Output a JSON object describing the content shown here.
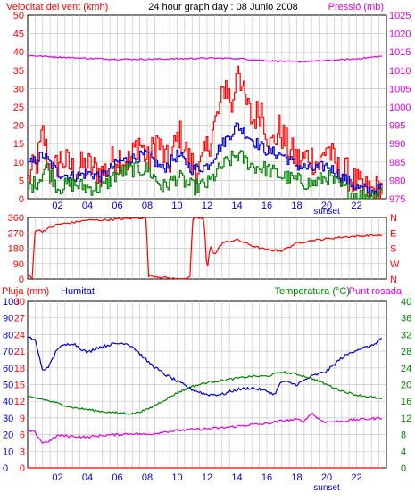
{
  "colors": {
    "red": "#ff0000",
    "blue": "#0000cc",
    "green": "#008000",
    "magenta": "#e000e0",
    "black": "#000000"
  },
  "chart_data": [
    {
      "type": "line",
      "title": "24 hour graph day : 08 Junio 2008",
      "left_label": "Velocitat del vent (kmh)",
      "right_label": "Pressió (mb)",
      "x_ticks": [
        "02",
        "04",
        "06",
        "08",
        "10",
        "12",
        "14",
        "16",
        "18",
        "20",
        "22"
      ],
      "x_extra_label": "sunset",
      "y_left_ticks": [
        "0",
        "5",
        "10",
        "15",
        "20",
        "25",
        "30",
        "35",
        "40",
        "45",
        "50"
      ],
      "y_right_ticks": [
        "975",
        "980",
        "985",
        "990",
        "995",
        "1000",
        "1005",
        "1010",
        "1015",
        "1020",
        "1025"
      ],
      "xlim": [
        0,
        24
      ],
      "ylim_left": [
        0,
        50
      ],
      "ylim_right": [
        975,
        1025
      ],
      "series": [
        {
          "color": "red",
          "axis": "left",
          "smooth": 0,
          "points": [
            [
              0,
              5
            ],
            [
              0.6,
              10
            ],
            [
              1.0,
              18
            ],
            [
              1.5,
              6
            ],
            [
              2.2,
              11
            ],
            [
              3.0,
              8
            ],
            [
              4.0,
              9
            ],
            [
              5.0,
              7
            ],
            [
              6.0,
              12
            ],
            [
              6.8,
              10
            ],
            [
              7.4,
              16
            ],
            [
              8.0,
              10
            ],
            [
              8.6,
              16
            ],
            [
              9.4,
              9
            ],
            [
              10.1,
              18
            ],
            [
              10.8,
              10
            ],
            [
              11.5,
              8
            ],
            [
              12.3,
              18
            ],
            [
              12.8,
              24
            ],
            [
              13.2,
              32
            ],
            [
              13.7,
              24
            ],
            [
              14.0,
              39
            ],
            [
              14.4,
              28
            ],
            [
              15.0,
              21
            ],
            [
              15.6,
              25
            ],
            [
              16.2,
              14
            ],
            [
              16.8,
              19
            ],
            [
              17.5,
              13
            ],
            [
              18.2,
              10
            ],
            [
              18.8,
              12
            ],
            [
              19.5,
              9
            ],
            [
              20.0,
              15
            ],
            [
              20.6,
              8
            ],
            [
              21.3,
              7
            ],
            [
              22.2,
              3
            ],
            [
              23.0,
              2
            ],
            [
              23.7,
              3
            ]
          ]
        },
        {
          "color": "blue",
          "axis": "left",
          "smooth": 0.25,
          "points": [
            [
              0,
              9
            ],
            [
              1,
              12
            ],
            [
              2,
              7
            ],
            [
              3,
              6
            ],
            [
              4,
              7
            ],
            [
              5,
              6
            ],
            [
              6,
              10
            ],
            [
              7,
              11
            ],
            [
              8,
              12
            ],
            [
              9,
              8
            ],
            [
              10,
              12
            ],
            [
              11,
              8
            ],
            [
              12,
              9
            ],
            [
              13,
              15
            ],
            [
              14,
              20
            ],
            [
              15,
              16
            ],
            [
              16,
              13
            ],
            [
              17,
              12
            ],
            [
              18,
              9
            ],
            [
              19,
              8
            ],
            [
              20,
              9
            ],
            [
              21,
              6
            ],
            [
              22,
              3
            ],
            [
              23,
              2
            ],
            [
              23.7,
              3
            ]
          ]
        },
        {
          "color": "green",
          "axis": "left",
          "smooth": 0,
          "points": [
            [
              0,
              3
            ],
            [
              0.7,
              5
            ],
            [
              1.2,
              9
            ],
            [
              2.0,
              3
            ],
            [
              3.0,
              4
            ],
            [
              4.0,
              3
            ],
            [
              5.0,
              3
            ],
            [
              6.0,
              7
            ],
            [
              7.0,
              8
            ],
            [
              8.0,
              8
            ],
            [
              9.0,
              3
            ],
            [
              10.0,
              6
            ],
            [
              11.0,
              3
            ],
            [
              12.0,
              4
            ],
            [
              13.0,
              9
            ],
            [
              14.0,
              12
            ],
            [
              15.0,
              9
            ],
            [
              16.0,
              8
            ],
            [
              17.0,
              6
            ],
            [
              18.0,
              5
            ],
            [
              19.0,
              4
            ],
            [
              20.0,
              6
            ],
            [
              21.0,
              3
            ],
            [
              22.0,
              1
            ],
            [
              23.0,
              1
            ],
            [
              23.7,
              2
            ]
          ]
        },
        {
          "color": "magenta",
          "axis": "right",
          "smooth": 0.3,
          "points": [
            [
              0,
              1014.0
            ],
            [
              2,
              1013.6
            ],
            [
              4,
              1013.2
            ],
            [
              6,
              1013.0
            ],
            [
              8,
              1013.0
            ],
            [
              10,
              1013.1
            ],
            [
              12,
              1013.3
            ],
            [
              14,
              1013.2
            ],
            [
              16,
              1012.6
            ],
            [
              18,
              1012.3
            ],
            [
              20,
              1012.6
            ],
            [
              22,
              1013.1
            ],
            [
              23.7,
              1013.8
            ]
          ]
        }
      ]
    },
    {
      "type": "line",
      "y_left_ticks": [
        "0",
        "90",
        "180",
        "270",
        "360"
      ],
      "y_right_ticks": [
        "N",
        "E",
        "S",
        "W",
        "N"
      ],
      "xlim": [
        0,
        24
      ],
      "ylim": [
        0,
        360
      ],
      "series": [
        {
          "color": "red",
          "smooth": 0,
          "points": [
            [
              0,
              30
            ],
            [
              0.3,
              0
            ],
            [
              0.5,
              290
            ],
            [
              1.0,
              280
            ],
            [
              2.0,
              320
            ],
            [
              3.0,
              330
            ],
            [
              4.0,
              345
            ],
            [
              5.0,
              345
            ],
            [
              6.0,
              350
            ],
            [
              7.0,
              355
            ],
            [
              7.95,
              360
            ],
            [
              8.05,
              20
            ],
            [
              9.0,
              10
            ],
            [
              10.0,
              0
            ],
            [
              10.9,
              10
            ],
            [
              11.0,
              340
            ],
            [
              11.3,
              360
            ],
            [
              11.8,
              350
            ],
            [
              12.0,
              30
            ],
            [
              12.2,
              200
            ],
            [
              12.5,
              140
            ],
            [
              13.0,
              210
            ],
            [
              14.0,
              230
            ],
            [
              15.0,
              195
            ],
            [
              16.0,
              170
            ],
            [
              17.0,
              165
            ],
            [
              18.0,
              210
            ],
            [
              19.0,
              225
            ],
            [
              20.0,
              235
            ],
            [
              21.0,
              245
            ],
            [
              22.0,
              250
            ],
            [
              23.0,
              255
            ],
            [
              23.7,
              255
            ]
          ]
        }
      ]
    },
    {
      "type": "line",
      "left_labels": [
        "Pluja (mm)",
        "Humitat"
      ],
      "right_labels": [
        "Temperatura (°C)",
        "Punt rosada"
      ],
      "x_ticks": [
        "02",
        "04",
        "06",
        "08",
        "10",
        "12",
        "14",
        "16",
        "18",
        "20",
        "22"
      ],
      "x_extra_label": "sunset",
      "y_rain_ticks": [
        "0",
        "3",
        "6",
        "9",
        "12",
        "15",
        "18",
        "21",
        "24",
        "27",
        "30"
      ],
      "y_humidity_ticks": [
        "0",
        "10",
        "20",
        "30",
        "40",
        "50",
        "60",
        "70",
        "80",
        "90",
        "100"
      ],
      "y_temp_ticks": [
        "0",
        "4",
        "8",
        "12",
        "16",
        "20",
        "24",
        "28",
        "32",
        "36",
        "40"
      ],
      "xlim": [
        0,
        24
      ],
      "ylim_humidity": [
        0,
        100
      ],
      "ylim_temp": [
        0,
        40
      ],
      "series": [
        {
          "color": "blue",
          "axis": "humidity",
          "smooth": 0.3,
          "points": [
            [
              0,
              78
            ],
            [
              0.5,
              77
            ],
            [
              1.0,
              58
            ],
            [
              1.5,
              62
            ],
            [
              2.0,
              72
            ],
            [
              3.0,
              75
            ],
            [
              4.0,
              69
            ],
            [
              4.6,
              72
            ],
            [
              5.5,
              74
            ],
            [
              6.5,
              75
            ],
            [
              7.0,
              73
            ],
            [
              8.0,
              64
            ],
            [
              9.0,
              57
            ],
            [
              10.0,
              52
            ],
            [
              11.0,
              47
            ],
            [
              12.0,
              44
            ],
            [
              13.0,
              44
            ],
            [
              14.0,
              47
            ],
            [
              15.0,
              48
            ],
            [
              16.0,
              46
            ],
            [
              16.5,
              44
            ],
            [
              17.0,
              52
            ],
            [
              18.0,
              50
            ],
            [
              19.0,
              55
            ],
            [
              20.0,
              58
            ],
            [
              21.0,
              66
            ],
            [
              22.0,
              71
            ],
            [
              23.0,
              73
            ],
            [
              23.7,
              78
            ]
          ]
        },
        {
          "color": "green",
          "axis": "temp",
          "smooth": 0.3,
          "points": [
            [
              0,
              17
            ],
            [
              1.0,
              16.5
            ],
            [
              2.0,
              15.5
            ],
            [
              3.0,
              14.5
            ],
            [
              4.0,
              14
            ],
            [
              5.0,
              13.5
            ],
            [
              6.0,
              13.2
            ],
            [
              7.0,
              13
            ],
            [
              8.0,
              14
            ],
            [
              9.0,
              16
            ],
            [
              10.0,
              18
            ],
            [
              11.0,
              19.5
            ],
            [
              12.0,
              20.5
            ],
            [
              13.0,
              21
            ],
            [
              14.0,
              21.5
            ],
            [
              15.0,
              22
            ],
            [
              16.0,
              22
            ],
            [
              17.0,
              23
            ],
            [
              18.0,
              22.5
            ],
            [
              19.0,
              21.5
            ],
            [
              20.0,
              20
            ],
            [
              21.0,
              18.5
            ],
            [
              22.0,
              17.5
            ],
            [
              23.0,
              17
            ],
            [
              23.7,
              16.5
            ]
          ]
        },
        {
          "color": "magenta",
          "axis": "temp",
          "smooth": 0.3,
          "points": [
            [
              0,
              9
            ],
            [
              0.5,
              8.5
            ],
            [
              1.0,
              6
            ],
            [
              1.5,
              6.5
            ],
            [
              2.0,
              7.8
            ],
            [
              3.0,
              7.6
            ],
            [
              4.0,
              7.4
            ],
            [
              5.0,
              7.8
            ],
            [
              6.0,
              8
            ],
            [
              7.0,
              8.3
            ],
            [
              8.0,
              8
            ],
            [
              9.0,
              8.6
            ],
            [
              10.0,
              9
            ],
            [
              11.0,
              9.2
            ],
            [
              12.0,
              9.4
            ],
            [
              13.0,
              9.6
            ],
            [
              14.0,
              10
            ],
            [
              15.0,
              10.4
            ],
            [
              16.0,
              10.6
            ],
            [
              17.0,
              11.3
            ],
            [
              18.0,
              11.6
            ],
            [
              18.5,
              11.2
            ],
            [
              19.0,
              13.2
            ],
            [
              19.5,
              11.6
            ],
            [
              20.0,
              11
            ],
            [
              21.0,
              11.2
            ],
            [
              22.0,
              11.6
            ],
            [
              23.0,
              11.8
            ],
            [
              23.7,
              12
            ]
          ]
        },
        {
          "color": "red",
          "axis": "rain",
          "smooth": 0,
          "points": [
            [
              0,
              0
            ],
            [
              23.7,
              0
            ]
          ]
        }
      ]
    }
  ]
}
